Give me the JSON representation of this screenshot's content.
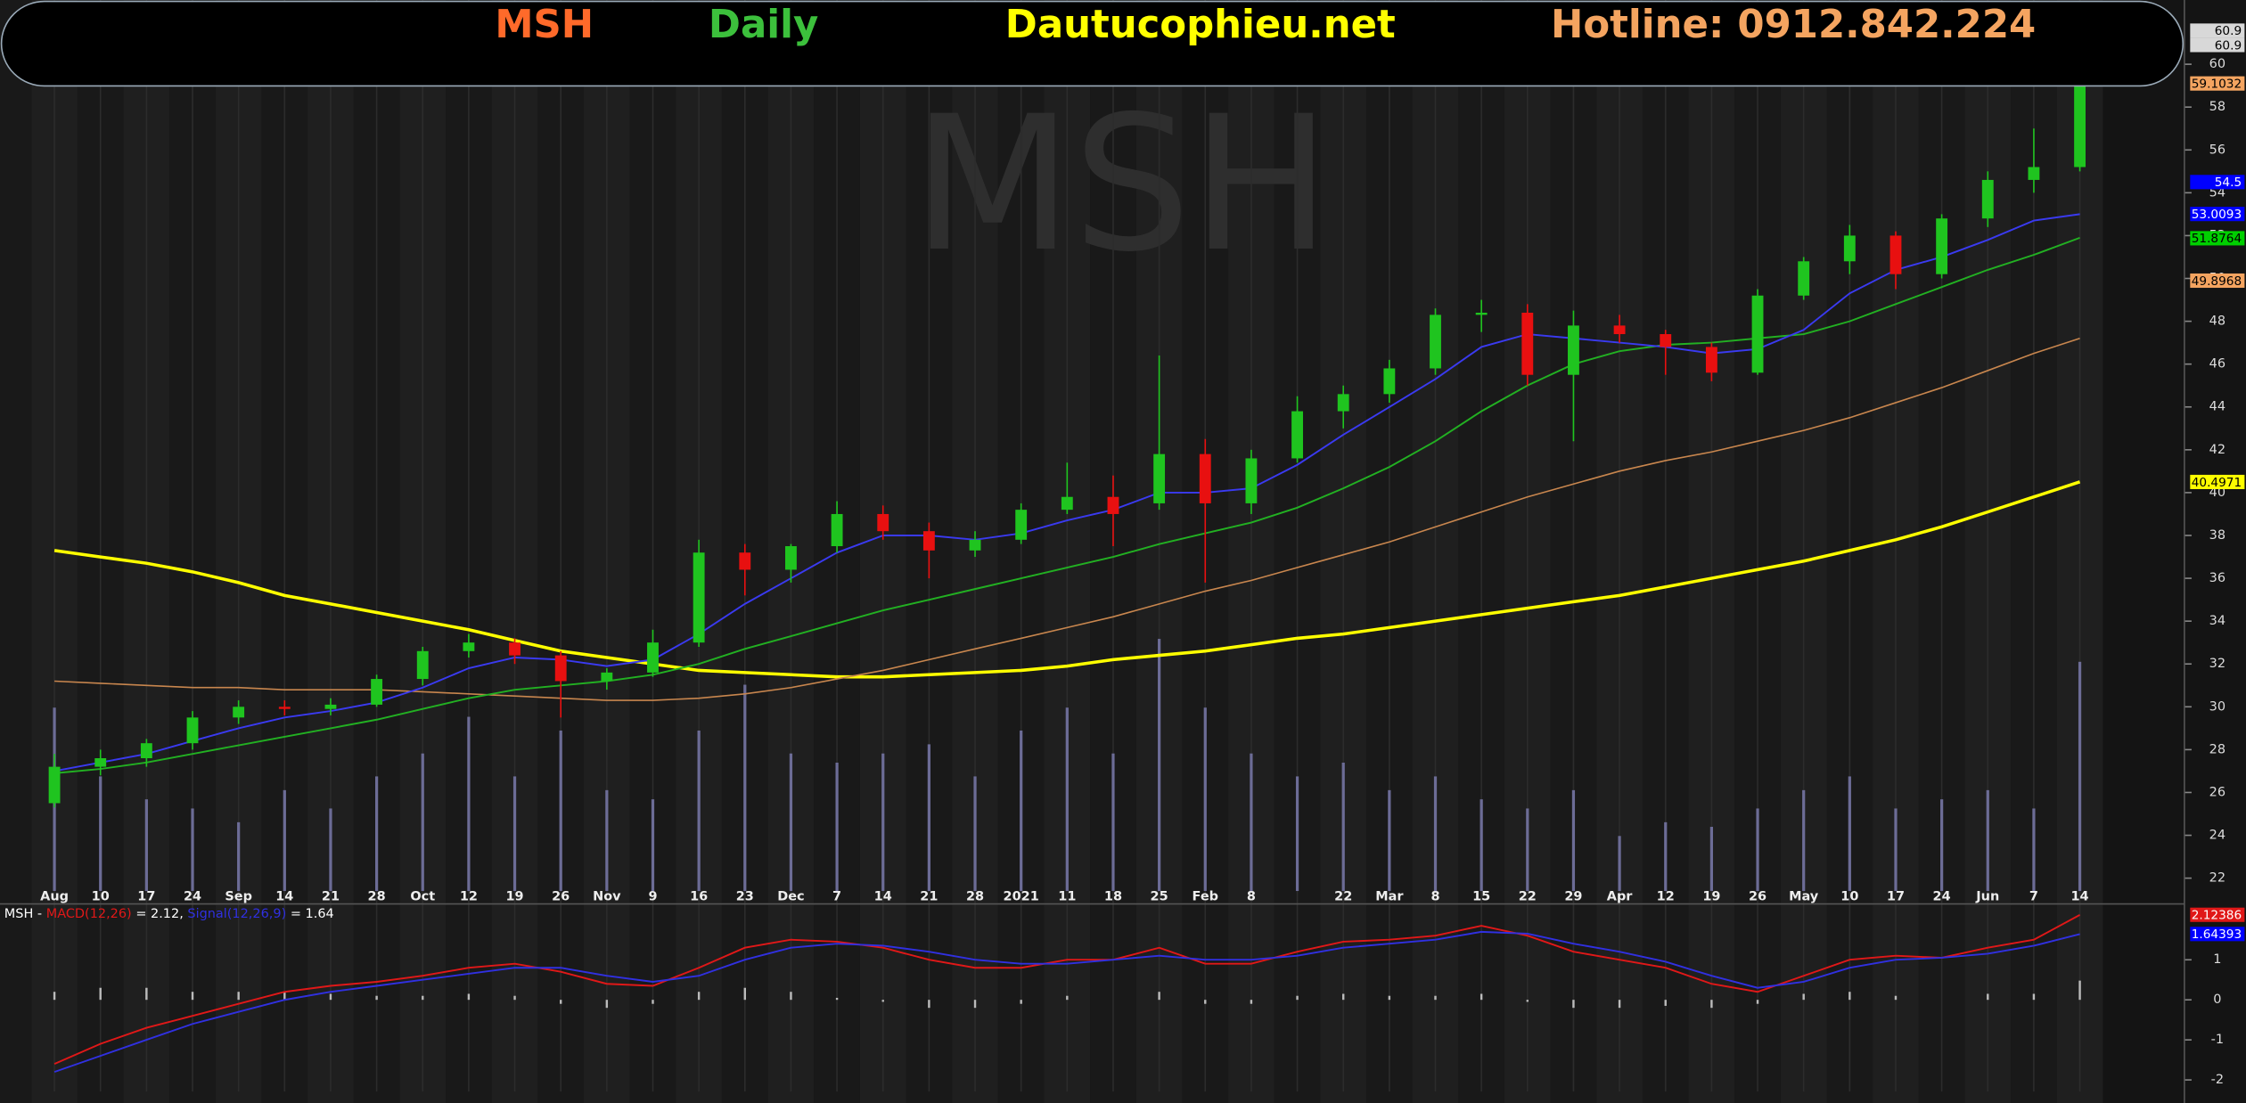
{
  "header": {
    "symbol": "MSH",
    "interval": "Daily",
    "site": "Dautucophieu.net",
    "hotline": "Hotline: 0912.842.224",
    "watermark": "MSH"
  },
  "chart_data": [
    {
      "type": "candlestick",
      "categories": [
        "Aug",
        "10",
        "17",
        "24",
        "Sep",
        "14",
        "21",
        "28",
        "Oct",
        "12",
        "19",
        "26",
        "Nov",
        "9",
        "16",
        "23",
        "Dec",
        "7",
        "14",
        "21",
        "28",
        "2021",
        "11",
        "18",
        "25",
        "Feb",
        "8",
        null,
        "22",
        "Mar",
        "8",
        "15",
        "22",
        "29",
        "Apr",
        "12",
        "19",
        "26",
        "May",
        "10",
        "17",
        "24",
        "Jun",
        "7",
        "14"
      ],
      "ohlc": [
        [
          25.5,
          27.8,
          25.3,
          27.2
        ],
        [
          27.2,
          28,
          26.8,
          27.6
        ],
        [
          27.6,
          28.5,
          27.2,
          28.3
        ],
        [
          28.3,
          29.8,
          28,
          29.5
        ],
        [
          29.5,
          30.3,
          29.2,
          30
        ],
        [
          30,
          30.3,
          29.6,
          29.9
        ],
        [
          29.9,
          30.4,
          29.6,
          30.1
        ],
        [
          30.1,
          31.5,
          30,
          31.3
        ],
        [
          31.3,
          32.8,
          31,
          32.6
        ],
        [
          32.6,
          33.4,
          32.3,
          33
        ],
        [
          33,
          33.2,
          32,
          32.4
        ],
        [
          32.4,
          32.6,
          29.5,
          31.2
        ],
        [
          31.2,
          31.8,
          30.8,
          31.6
        ],
        [
          31.6,
          33.6,
          31.4,
          33
        ],
        [
          33,
          37.8,
          32.8,
          37.2
        ],
        [
          37.2,
          37.6,
          35.2,
          36.4
        ],
        [
          36.4,
          37.6,
          35.8,
          37.5
        ],
        [
          37.5,
          39.6,
          37.2,
          39
        ],
        [
          39,
          39.4,
          37.8,
          38.2
        ],
        [
          38.2,
          38.6,
          36,
          37.3
        ],
        [
          37.3,
          38.2,
          37,
          37.8
        ],
        [
          37.8,
          39.5,
          37.6,
          39.2
        ],
        [
          39.2,
          41.4,
          39,
          39.8
        ],
        [
          39.8,
          40.8,
          37.5,
          39
        ],
        [
          39.5,
          46.4,
          39.2,
          41.8
        ],
        [
          41.8,
          42.5,
          35.8,
          39.5
        ],
        [
          39.5,
          42,
          39,
          41.6
        ],
        [
          41.6,
          44.5,
          41.4,
          43.8
        ],
        [
          43.8,
          45,
          43,
          44.6
        ],
        [
          44.6,
          46.2,
          44.2,
          45.8
        ],
        [
          45.8,
          48.6,
          45.5,
          48.3
        ],
        [
          48.3,
          49,
          47.5,
          48.4
        ],
        [
          48.4,
          48.8,
          45,
          45.5
        ],
        [
          45.5,
          48.5,
          42.4,
          47.8
        ],
        [
          47.8,
          48.3,
          47,
          47.4
        ],
        [
          47.4,
          47.6,
          45.5,
          46.8
        ],
        [
          46.8,
          47,
          45.2,
          45.6
        ],
        [
          45.6,
          49.5,
          45.5,
          49.2
        ],
        [
          49.2,
          51,
          49,
          50.8
        ],
        [
          50.8,
          52.5,
          50.2,
          52
        ],
        [
          52,
          52.2,
          49.5,
          50.2
        ],
        [
          50.2,
          53,
          50,
          52.8
        ],
        [
          52.8,
          55,
          52.4,
          54.6
        ],
        [
          54.6,
          57,
          54,
          55.2
        ],
        [
          55.2,
          60.9,
          55,
          60.9
        ]
      ],
      "up_color": "#1fc41f",
      "down_color": "#e81010",
      "series": [
        {
          "color": "#ffff00",
          "width": 2.2,
          "values": [
            37.3,
            37,
            36.7,
            36.3,
            35.8,
            35.2,
            34.8,
            34.4,
            34,
            33.6,
            33.1,
            32.6,
            32.3,
            32,
            31.7,
            31.6,
            31.5,
            31.4,
            31.4,
            31.5,
            31.6,
            31.7,
            31.9,
            32.2,
            32.4,
            32.6,
            32.9,
            33.2,
            33.4,
            33.7,
            34,
            34.3,
            34.6,
            34.9,
            35.2,
            35.6,
            36,
            36.4,
            36.8,
            37.3,
            37.8,
            38.4,
            39.1,
            39.8,
            40.5
          ]
        },
        {
          "color": "#c8864e",
          "width": 1,
          "values": [
            31.2,
            31.1,
            31,
            30.9,
            30.9,
            30.8,
            30.8,
            30.8,
            30.7,
            30.6,
            30.5,
            30.4,
            30.3,
            30.3,
            30.4,
            30.6,
            30.9,
            31.3,
            31.7,
            32.2,
            32.7,
            33.2,
            33.7,
            34.2,
            34.8,
            35.4,
            35.9,
            36.5,
            37.1,
            37.7,
            38.4,
            39.1,
            39.8,
            40.4,
            41,
            41.5,
            41.9,
            42.4,
            42.9,
            43.5,
            44.2,
            44.9,
            45.7,
            46.5,
            47.2
          ]
        },
        {
          "color": "#22b022",
          "width": 1.2,
          "values": [
            26.9,
            27.1,
            27.4,
            27.8,
            28.2,
            28.6,
            29,
            29.4,
            29.9,
            30.4,
            30.8,
            31,
            31.2,
            31.5,
            32,
            32.7,
            33.3,
            33.9,
            34.5,
            35,
            35.5,
            36,
            36.5,
            37,
            37.6,
            38.1,
            38.6,
            39.3,
            40.2,
            41.2,
            42.4,
            43.8,
            45,
            46,
            46.6,
            46.9,
            47,
            47.2,
            47.4,
            48,
            48.8,
            49.6,
            50.4,
            51.1,
            51.9
          ]
        },
        {
          "color": "#3a3af0",
          "width": 1.2,
          "values": [
            27,
            27.4,
            27.8,
            28.4,
            29,
            29.5,
            29.8,
            30.2,
            30.9,
            31.8,
            32.3,
            32.2,
            31.9,
            32.2,
            33.4,
            34.8,
            36,
            37.2,
            38,
            38,
            37.8,
            38.1,
            38.7,
            39.2,
            40,
            40,
            40.2,
            41.3,
            42.7,
            44,
            45.3,
            46.8,
            47.4,
            47.2,
            47,
            46.8,
            46.5,
            46.7,
            47.6,
            49.3,
            50.4,
            51,
            51.8,
            52.7,
            53
          ]
        }
      ],
      "volume": [
        40,
        25,
        20,
        18,
        15,
        22,
        18,
        25,
        30,
        38,
        25,
        35,
        22,
        20,
        35,
        45,
        30,
        28,
        30,
        32,
        25,
        35,
        40,
        30,
        55,
        40,
        30,
        25,
        28,
        22,
        25,
        20,
        18,
        22,
        12,
        15,
        14,
        18,
        22,
        25,
        18,
        20,
        22,
        18,
        50
      ],
      "volume_color": "#6c6c96",
      "volume_lim": [
        0,
        100
      ],
      "ylim": [
        21.4,
        63
      ],
      "yticks": [
        22,
        24,
        26,
        28,
        30,
        32,
        34,
        36,
        38,
        40,
        42,
        44,
        46,
        48,
        50,
        52,
        54,
        56,
        58,
        60
      ],
      "price_labels": [
        {
          "value": 60.9,
          "color": "#d8d8d8",
          "text_color": "#000000"
        },
        {
          "value": 60.9,
          "color": "#d8d8d8",
          "text_color": "#000000"
        },
        {
          "value": 59.1032,
          "color": "#f4a460",
          "text_color": "#000000"
        },
        {
          "value": 54.5,
          "color": "#0000ff",
          "text_color": "#ffffff"
        },
        {
          "value": 53.0093,
          "color": "#0000ff",
          "text_color": "#ffffff"
        },
        {
          "value": 51.8764,
          "color": "#00d000",
          "text_color": "#000000"
        },
        {
          "value": 49.8968,
          "color": "#f4a460",
          "text_color": "#000000"
        },
        {
          "value": 40.4971,
          "color": "#ffff00",
          "text_color": "#000000"
        }
      ]
    },
    {
      "type": "macd",
      "legend_prefix": "MSH -",
      "series": [
        {
          "name": "MACD(12,26)",
          "legend_suffix": "= 2.12,",
          "color": "#e01818",
          "values": [
            -1.6,
            -1.1,
            -0.7,
            -0.4,
            -0.1,
            0.2,
            0.35,
            0.45,
            0.6,
            0.8,
            0.9,
            0.7,
            0.4,
            0.35,
            0.8,
            1.3,
            1.5,
            1.45,
            1.3,
            1,
            0.8,
            0.8,
            1,
            1,
            1.3,
            0.9,
            0.9,
            1.2,
            1.45,
            1.5,
            1.6,
            1.85,
            1.6,
            1.2,
            1,
            0.8,
            0.4,
            0.2,
            0.6,
            1,
            1.1,
            1.05,
            1.3,
            1.5,
            2.12
          ]
        },
        {
          "name": "Signal(12,26,9)",
          "legend_suffix": "= 1.64",
          "color": "#3030e0",
          "values": [
            -1.8,
            -1.4,
            -1,
            -0.6,
            -0.3,
            0,
            0.2,
            0.35,
            0.5,
            0.65,
            0.8,
            0.8,
            0.6,
            0.45,
            0.6,
            1,
            1.3,
            1.4,
            1.35,
            1.2,
            1,
            0.9,
            0.9,
            1,
            1.1,
            1,
            1,
            1.1,
            1.3,
            1.4,
            1.5,
            1.7,
            1.65,
            1.4,
            1.2,
            0.95,
            0.6,
            0.3,
            0.45,
            0.8,
            1,
            1.05,
            1.15,
            1.35,
            1.64
          ]
        }
      ],
      "histogram": [
        0.2,
        0.3,
        0.3,
        0.2,
        0.2,
        0.2,
        0.15,
        0.1,
        0.1,
        0.15,
        0.1,
        -0.1,
        -0.2,
        -0.1,
        0.2,
        0.3,
        0.2,
        0.05,
        -0.05,
        -0.2,
        -0.2,
        -0.1,
        0.1,
        0,
        0.2,
        -0.1,
        -0.1,
        0.1,
        0.15,
        0.1,
        0.1,
        0.15,
        -0.05,
        -0.2,
        -0.2,
        -0.15,
        -0.2,
        -0.1,
        0.15,
        0.2,
        0.1,
        0,
        0.15,
        0.15,
        0.48
      ],
      "histogram_color": "#bbbbbb",
      "ylim": [
        -2.29,
        2.36
      ],
      "yticks": [
        -2,
        -1,
        0,
        1
      ],
      "price_labels": [
        {
          "value": 2.12386,
          "color": "#e01818",
          "text_color": "#ffffff"
        },
        {
          "value": 1.64393,
          "color": "#0000ff",
          "text_color": "#ffffff"
        }
      ]
    }
  ]
}
